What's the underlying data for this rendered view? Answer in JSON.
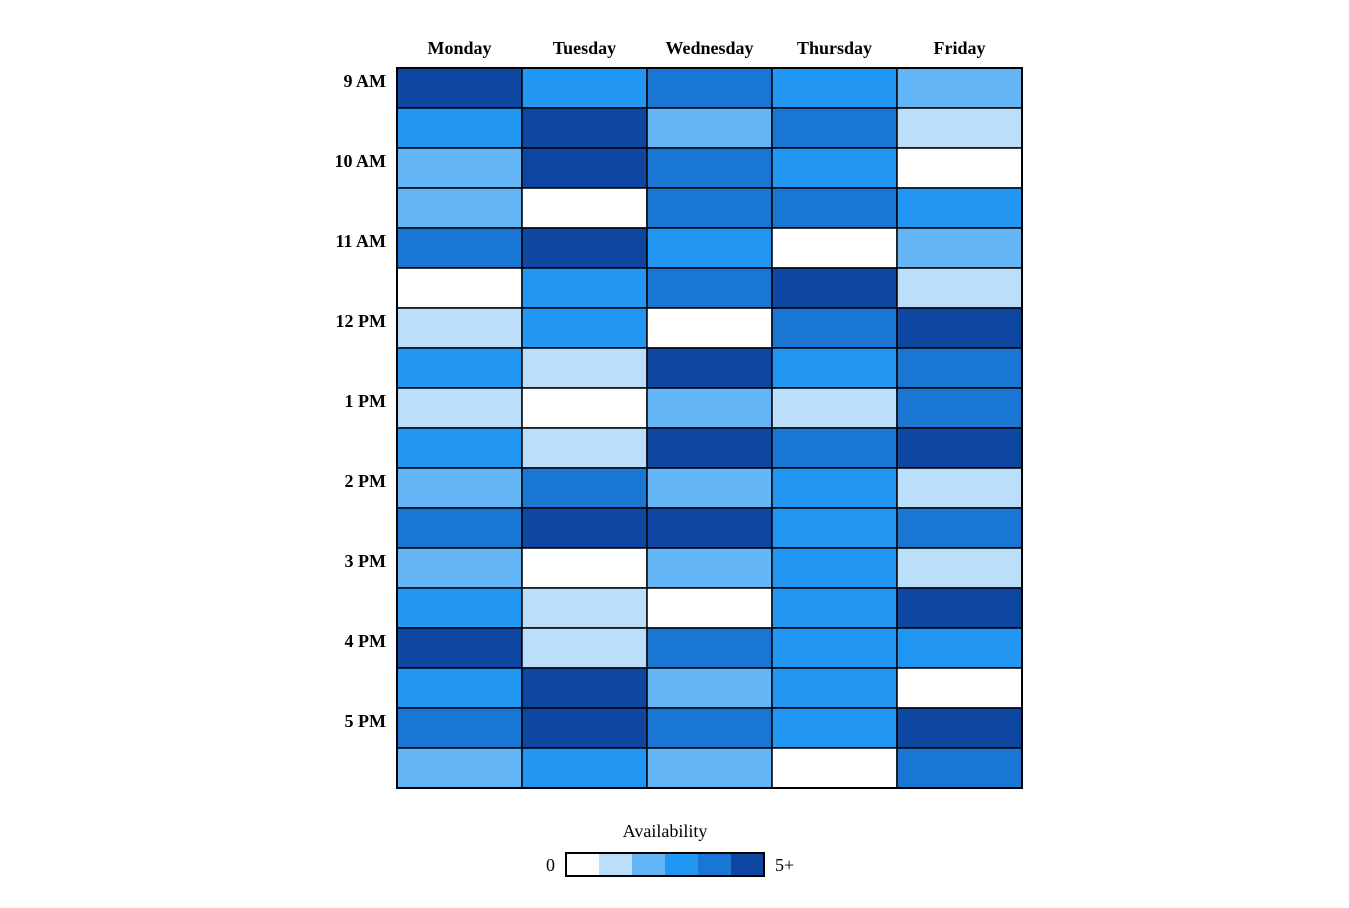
{
  "chart_data": {
    "type": "heatmap",
    "columns": [
      "Monday",
      "Tuesday",
      "Wednesday",
      "Thursday",
      "Friday"
    ],
    "row_labels": [
      "9 AM",
      "",
      "10 AM",
      "",
      "11 AM",
      "",
      "12 PM",
      "",
      "1 PM",
      "",
      "2 PM",
      "",
      "3 PM",
      "",
      "4 PM",
      "",
      "5 PM",
      ""
    ],
    "values": [
      [
        5,
        3,
        4,
        3,
        2
      ],
      [
        3,
        5,
        2,
        4,
        1
      ],
      [
        2,
        5,
        4,
        3,
        0
      ],
      [
        2,
        0,
        4,
        4,
        3
      ],
      [
        4,
        5,
        3,
        0,
        2
      ],
      [
        0,
        3,
        4,
        5,
        1
      ],
      [
        1,
        3,
        0,
        4,
        5
      ],
      [
        3,
        1,
        5,
        3,
        4
      ],
      [
        1,
        0,
        2,
        1,
        4
      ],
      [
        3,
        1,
        5,
        4,
        5
      ],
      [
        2,
        4,
        2,
        3,
        1
      ],
      [
        4,
        5,
        5,
        3,
        4
      ],
      [
        2,
        0,
        2,
        3,
        1
      ],
      [
        3,
        1,
        0,
        3,
        5
      ],
      [
        5,
        1,
        4,
        3,
        3
      ],
      [
        3,
        5,
        2,
        3,
        0
      ],
      [
        4,
        5,
        4,
        3,
        5
      ],
      [
        2,
        3,
        2,
        0,
        4
      ]
    ],
    "color_scale": [
      "#ffffff",
      "#bbdefb",
      "#64b5f6",
      "#2196f3",
      "#1976d2",
      "#0d47a1"
    ],
    "legend": {
      "title": "Availability",
      "min_label": "0",
      "max_label": "5+",
      "placement": "bottom-center"
    }
  }
}
